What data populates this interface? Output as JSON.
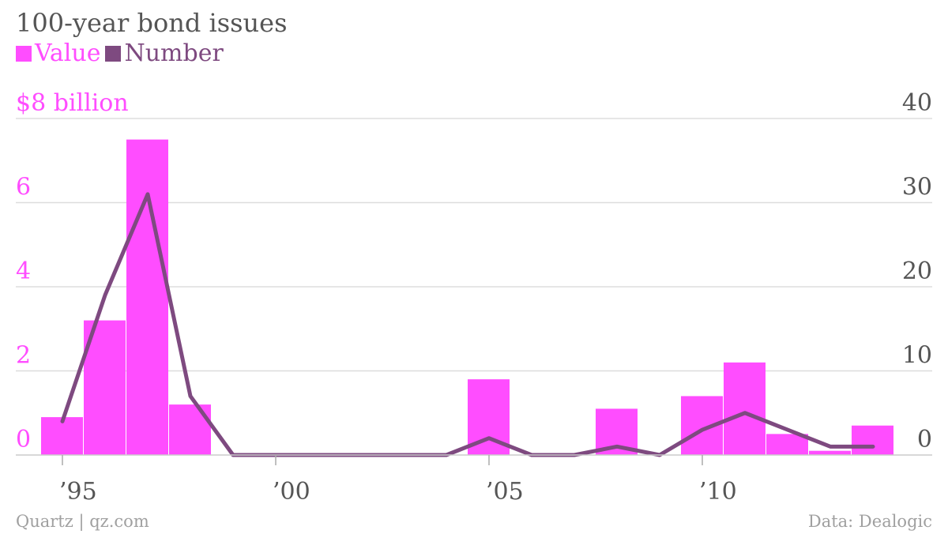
{
  "colors": {
    "value": "#ff4dff",
    "number": "#7e4a80",
    "grid": "#dddddd",
    "text": "#555555",
    "footer": "#a0a0a0"
  },
  "footer": {
    "source_left": "Quartz | qz.com",
    "source_right": "Data: Dealogic"
  },
  "chart_data": {
    "type": "bar",
    "title": "100-year bond issues",
    "legend": [
      "Value",
      "Number"
    ],
    "legend_position": "top-left",
    "grid": true,
    "x": [
      1995,
      1996,
      1997,
      1998,
      1999,
      2000,
      2001,
      2002,
      2003,
      2004,
      2005,
      2006,
      2007,
      2008,
      2009,
      2010,
      2011,
      2012,
      2013,
      2014
    ],
    "x_ticks": [
      {
        "x": 1995,
        "label": "’95"
      },
      {
        "x": 2000,
        "label": "’00"
      },
      {
        "x": 2005,
        "label": "’05"
      },
      {
        "x": 2010,
        "label": "’10"
      }
    ],
    "series": [
      {
        "name": "Value",
        "type": "bar",
        "axis": "left",
        "values": [
          0.9,
          3.2,
          7.5,
          1.2,
          0,
          0,
          0,
          0,
          0,
          0,
          1.8,
          0,
          0,
          1.1,
          0,
          1.4,
          2.2,
          0.5,
          0.1,
          0.7
        ]
      },
      {
        "name": "Number",
        "type": "line",
        "axis": "right",
        "values": [
          4,
          19,
          31,
          7,
          0,
          0,
          0,
          0,
          0,
          0,
          2,
          0,
          0,
          1,
          0,
          3,
          5,
          3,
          1,
          1
        ]
      }
    ],
    "y_left": {
      "ylim": [
        0,
        8
      ],
      "ticks": [
        0,
        2,
        4,
        6,
        8
      ],
      "tick_labels": [
        "0",
        "2",
        "4",
        "6",
        "$8 billion"
      ]
    },
    "y_right": {
      "ylim": [
        0,
        40
      ],
      "ticks": [
        0,
        10,
        20,
        30,
        40
      ],
      "tick_labels": [
        "0",
        "10",
        "20",
        "30",
        "40"
      ]
    }
  }
}
